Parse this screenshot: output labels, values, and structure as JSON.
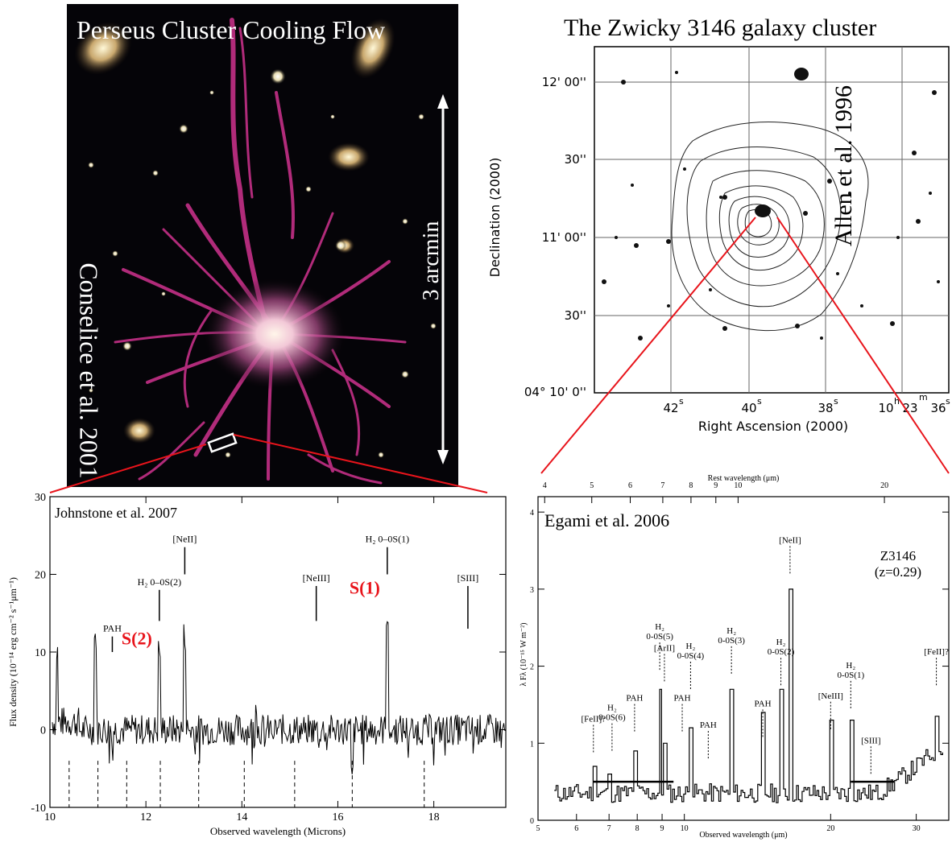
{
  "perseus": {
    "title": "Perseus Cluster Cooling Flow",
    "credit": "Conselice et al. 2001",
    "scale_label": "3 arcmin"
  },
  "zwicky": {
    "title": "The Zwicky 3146 galaxy cluster",
    "credit": "Allen et al. 1996",
    "ylabel": "Declination (2000)",
    "xlabel": "Right Ascension (2000)",
    "dec_ticks": [
      "12' 00''",
      "30''",
      "11' 00''",
      "30''",
      "04° 10'  0''"
    ],
    "ra_ticks": [
      "42",
      "40",
      "38",
      "10",
      "23",
      "36"
    ],
    "ra_units": [
      "s",
      "s",
      "s",
      "h",
      "m",
      "s"
    ]
  },
  "johnstone": {
    "credit": "Johnstone et al. 2007",
    "xlabel": "Observed wavelength (Microns)",
    "ylabel": "Flux density (10⁻¹⁴ erg cm⁻² s⁻¹μm⁻¹)",
    "xticks": [
      "10",
      "12",
      "14",
      "16",
      "18"
    ],
    "yticks": [
      "-10",
      "0",
      "10",
      "20",
      "30"
    ],
    "lines": [
      {
        "label": "PAH",
        "x": 11.3
      },
      {
        "label": "H₂ 0–0S(2)",
        "x": 12.28
      },
      {
        "label": "[NeII]",
        "x": 12.81
      },
      {
        "label": "[NeIII]",
        "x": 15.55
      },
      {
        "label": "H₂ 0–0S(1)",
        "x": 17.03
      },
      {
        "label": "[SIII]",
        "x": 18.71
      }
    ],
    "big_labels": [
      {
        "text": "S(2)",
        "x": 12.28
      },
      {
        "text": "S(1)",
        "x": 17.03
      }
    ],
    "accent": "#e8141b"
  },
  "egami": {
    "credit": "Egami et al. 2006",
    "object": "Z3146",
    "redshift": "(z=0.29)",
    "top_label": "Rest wavelength (μm)",
    "xlabel": "Observed wavelength (μm)",
    "ylabel": "λ Fλ (10⁻¹⁵ W m⁻²)",
    "top_ticks": [
      "4",
      "5",
      "6",
      "7",
      "8",
      "9",
      "10",
      "20"
    ],
    "bottom_ticks": [
      "5",
      "6",
      "7",
      "8",
      "9",
      "10",
      "20",
      "30"
    ],
    "yticks": [
      "0",
      "1",
      "2",
      "3",
      "4"
    ],
    "lines": [
      {
        "label": "[FeII]?",
        "x": 6.5
      },
      {
        "label": "H₂",
        "label2": "0-0S(6)",
        "x": 7.1
      },
      {
        "label": "PAH",
        "x": 7.9
      },
      {
        "label": "H₂",
        "label2": "0-0S(5)",
        "x": 8.9
      },
      {
        "label": "[ArII]",
        "x": 9.1
      },
      {
        "label": "PAH",
        "x": 9.9
      },
      {
        "label": "H₂",
        "label2": "0-0S(4)",
        "x": 10.3
      },
      {
        "label": "PAH",
        "x": 11.2
      },
      {
        "label": "H₂",
        "label2": "0-0S(3)",
        "x": 12.5
      },
      {
        "label": "PAH",
        "x": 14.5
      },
      {
        "label": "H₂",
        "label2": "0-0S(2)",
        "x": 15.8
      },
      {
        "label": "[NeII]",
        "x": 16.5
      },
      {
        "label": "[NeIII]",
        "x": 20.0
      },
      {
        "label": "H₂",
        "label2": "0-0S(1)",
        "x": 22.0
      },
      {
        "label": "[SIII]",
        "x": 24.2
      },
      {
        "label": "[FeII]?",
        "x": 33.0
      }
    ]
  },
  "connector_color": "#e8141b"
}
